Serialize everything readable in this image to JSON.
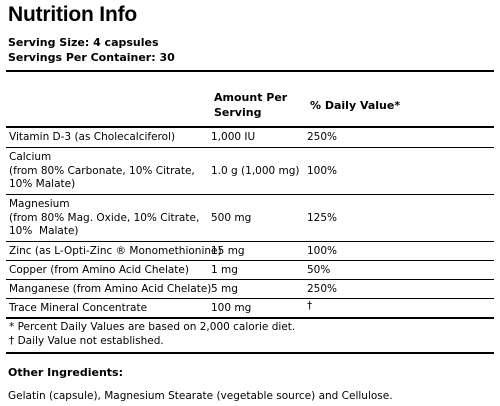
{
  "title": "Nutrition Info",
  "serving_size": "Serving Size: 4 capsules",
  "servings_per_container": "Servings Per Container: 30",
  "headers": {
    "amount_line1": "Amount Per",
    "amount_line2": "Serving",
    "daily_value": "% Daily Value*"
  },
  "nutrients": [
    {
      "name": "Vitamin D-3 (as Cholecalciferol)",
      "amount": "1,000 IU",
      "dv": "250%"
    },
    {
      "name": "Calcium\n(from 80% Carbonate, 10% Citrate, 10% Malate)",
      "amount": "1.0 g (1,000 mg)",
      "dv": "100%"
    },
    {
      "name": "Magnesium\n(from 80% Mag. Oxide, 10% Citrate,\n10%  Malate)",
      "amount": "500 mg",
      "dv": "125%"
    },
    {
      "name": "Zinc (as L-Opti-Zinc ® Monomethionine)",
      "amount": "15 mg",
      "dv": "100%"
    },
    {
      "name": "Copper (from Amino Acid Chelate)",
      "amount": "1 mg",
      "dv": "50%"
    },
    {
      "name": "Manganese (from Amino Acid Chelate)",
      "amount": "5 mg",
      "dv": "250%"
    },
    {
      "name": "Trace Mineral Concentrate",
      "amount": "100 mg",
      "dv": "†"
    }
  ],
  "footnotes": [
    "* Percent Daily Values are based on 2,000 calorie diet.",
    "† Daily Value not established."
  ],
  "other_ingredients_label": "Other Ingredients:",
  "other_ingredients": "Gelatin (capsule), Magnesium Stearate (vegetable source) and Cellulose."
}
